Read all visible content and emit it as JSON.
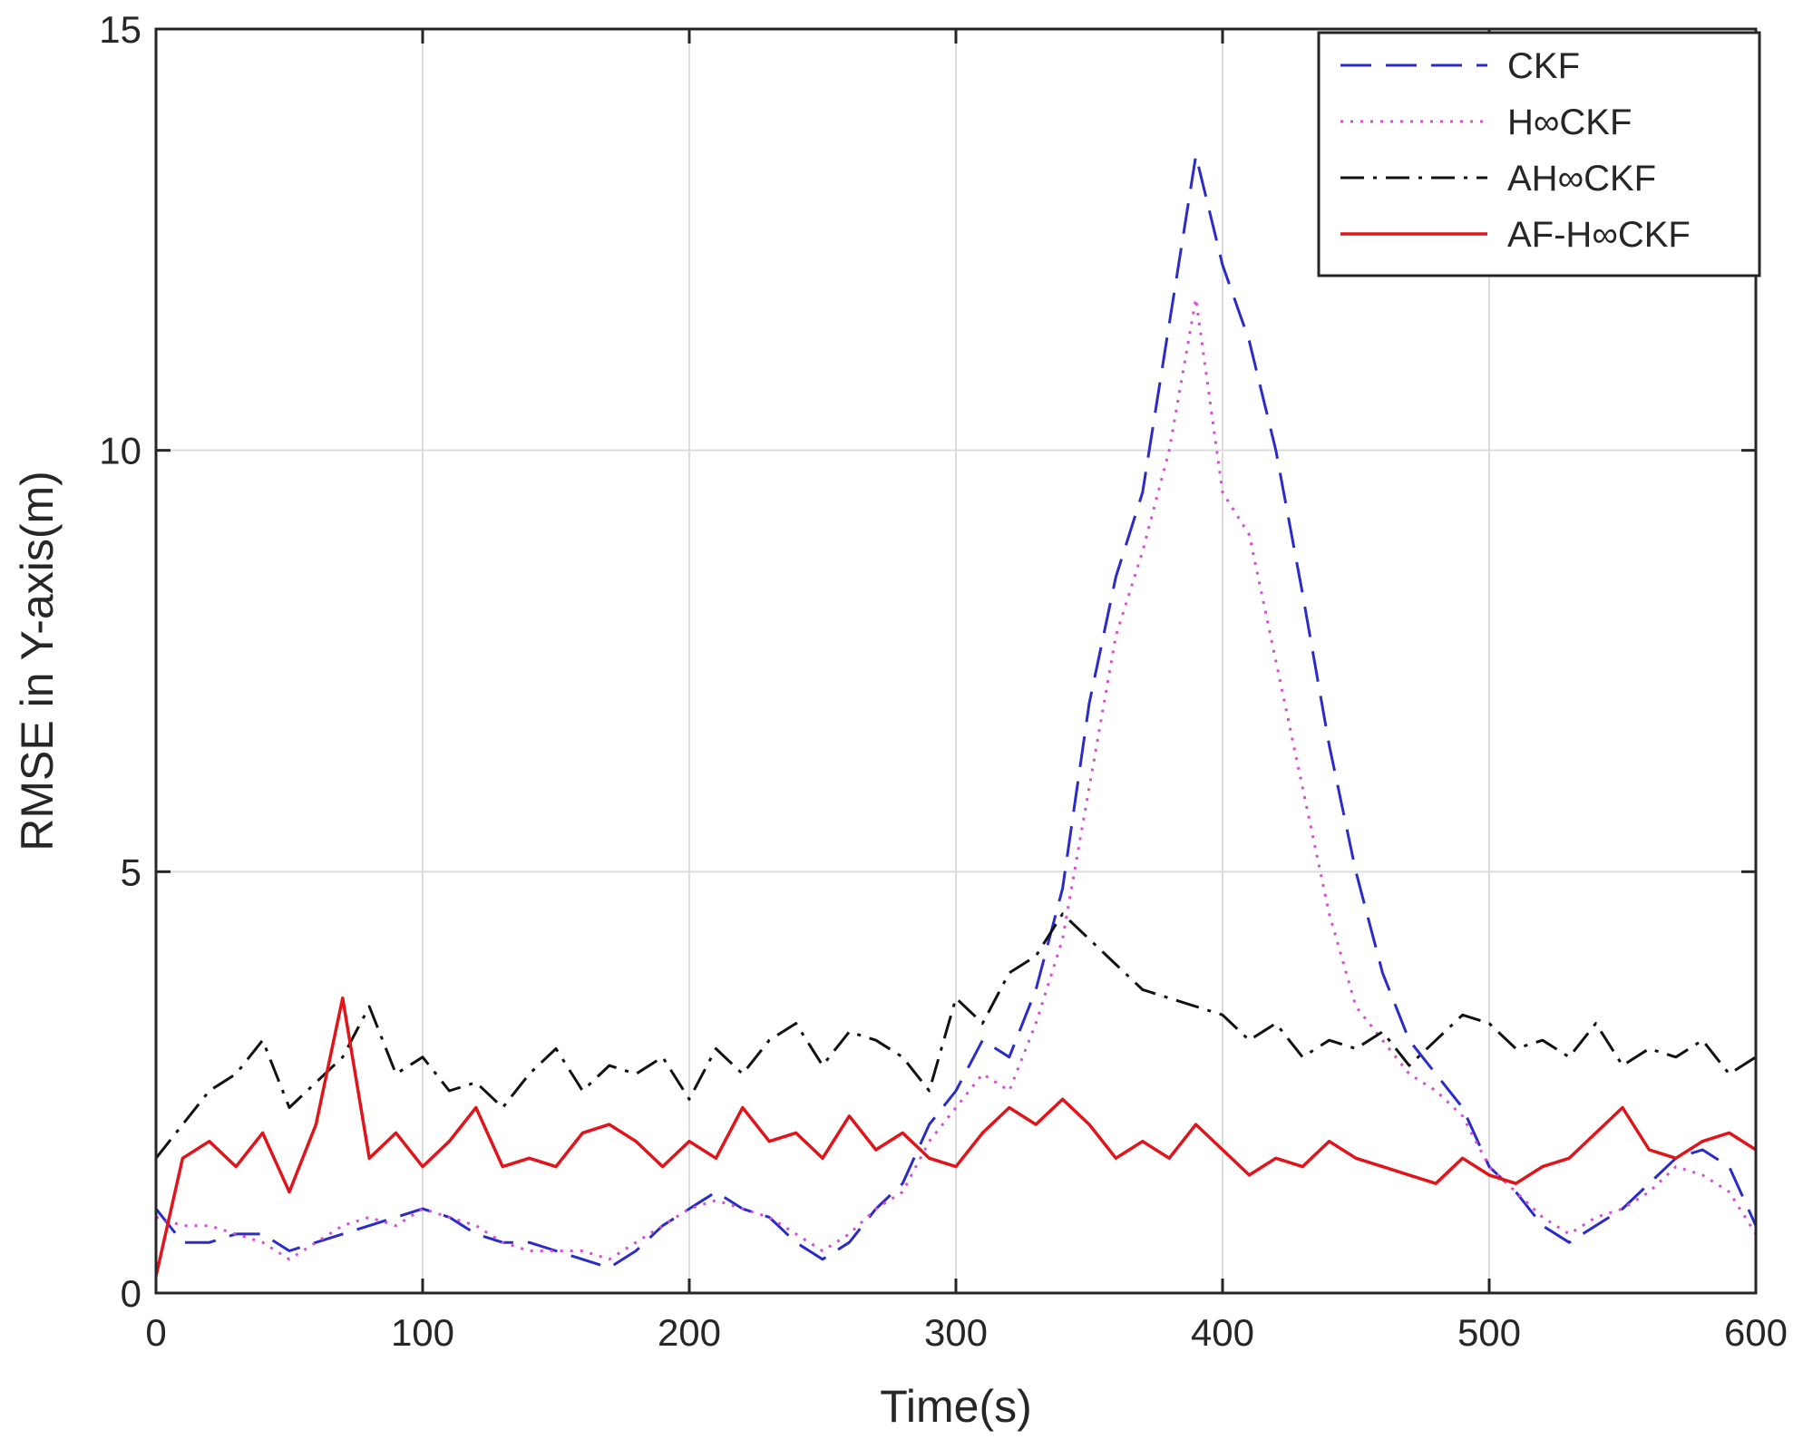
{
  "chart_data": {
    "type": "line",
    "title": "",
    "xlabel": "Time(s)",
    "ylabel": "RMSE in Y-axis(m)",
    "xlim": [
      0,
      600
    ],
    "ylim": [
      0,
      15
    ],
    "xticks": [
      0,
      100,
      200,
      300,
      400,
      500,
      600
    ],
    "yticks": [
      0,
      5,
      10,
      15
    ],
    "grid": true,
    "legend_position": "top-right",
    "x": {
      "start": 0,
      "end": 600,
      "step": 10
    },
    "series": [
      {
        "name": "CKF",
        "color": "#2b2bc8",
        "style": "dashed",
        "values": [
          1.0,
          0.6,
          0.6,
          0.7,
          0.7,
          0.5,
          0.6,
          0.7,
          0.8,
          0.9,
          1.0,
          0.9,
          0.7,
          0.6,
          0.6,
          0.5,
          0.4,
          0.3,
          0.5,
          0.8,
          1.0,
          1.2,
          1.0,
          0.9,
          0.6,
          0.4,
          0.6,
          1.0,
          1.3,
          2.0,
          2.4,
          3.0,
          2.8,
          3.6,
          4.8,
          7.0,
          8.5,
          9.5,
          11.5,
          13.5,
          12.2,
          11.3,
          10.0,
          8.3,
          6.5,
          5.0,
          3.8,
          3.0,
          2.6,
          2.2,
          1.5,
          1.2,
          0.8,
          0.6,
          0.8,
          1.0,
          1.3,
          1.6,
          1.7,
          1.5,
          0.8
        ]
      },
      {
        "name": "H∞CKF",
        "color": "#d44fd4",
        "style": "dotted",
        "values": [
          0.9,
          0.8,
          0.8,
          0.7,
          0.6,
          0.4,
          0.6,
          0.8,
          0.9,
          0.8,
          1.0,
          0.9,
          0.8,
          0.6,
          0.5,
          0.5,
          0.5,
          0.4,
          0.6,
          0.8,
          1.0,
          1.1,
          1.0,
          0.9,
          0.7,
          0.5,
          0.7,
          1.0,
          1.2,
          1.8,
          2.2,
          2.6,
          2.4,
          3.2,
          4.2,
          6.0,
          7.8,
          8.8,
          10.0,
          11.8,
          9.5,
          9.0,
          7.5,
          6.0,
          4.5,
          3.4,
          3.0,
          2.6,
          2.4,
          2.1,
          1.5,
          1.2,
          0.9,
          0.7,
          0.9,
          1.0,
          1.2,
          1.5,
          1.4,
          1.2,
          0.7
        ]
      },
      {
        "name": "AH∞CKF",
        "color": "#111111",
        "style": "dashdot",
        "values": [
          1.6,
          2.0,
          2.4,
          2.6,
          3.0,
          2.2,
          2.5,
          2.8,
          3.4,
          2.6,
          2.8,
          2.4,
          2.5,
          2.2,
          2.6,
          2.9,
          2.4,
          2.7,
          2.6,
          2.8,
          2.3,
          2.9,
          2.6,
          3.0,
          3.2,
          2.7,
          3.1,
          3.0,
          2.8,
          2.4,
          3.5,
          3.2,
          3.8,
          4.0,
          4.5,
          4.2,
          3.9,
          3.6,
          3.5,
          3.4,
          3.3,
          3.0,
          3.2,
          2.8,
          3.0,
          2.9,
          3.1,
          2.7,
          3.0,
          3.3,
          3.2,
          2.9,
          3.0,
          2.8,
          3.2,
          2.7,
          2.9,
          2.8,
          3.0,
          2.6,
          2.8
        ]
      },
      {
        "name": "AF-H∞CKF",
        "color": "#e0151b",
        "style": "solid",
        "values": [
          0.2,
          1.6,
          1.8,
          1.5,
          1.9,
          1.2,
          2.0,
          3.5,
          1.6,
          1.9,
          1.5,
          1.8,
          2.2,
          1.5,
          1.6,
          1.5,
          1.9,
          2.0,
          1.8,
          1.5,
          1.8,
          1.6,
          2.2,
          1.8,
          1.9,
          1.6,
          2.1,
          1.7,
          1.9,
          1.6,
          1.5,
          1.9,
          2.2,
          2.0,
          2.3,
          2.0,
          1.6,
          1.8,
          1.6,
          2.0,
          1.7,
          1.4,
          1.6,
          1.5,
          1.8,
          1.6,
          1.5,
          1.4,
          1.3,
          1.6,
          1.4,
          1.3,
          1.5,
          1.6,
          1.9,
          2.2,
          1.7,
          1.6,
          1.8,
          1.9,
          1.7
        ]
      }
    ]
  }
}
